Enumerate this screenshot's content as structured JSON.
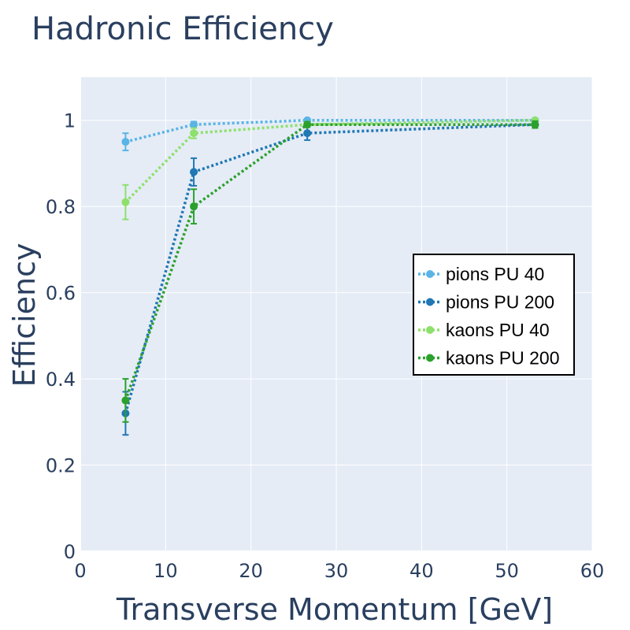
{
  "chart_data": {
    "type": "line",
    "title": "Hadronic Efficiency",
    "xlabel": "Transverse Momentum [GeV]",
    "ylabel": "Efficiency",
    "xlim": [
      0,
      60
    ],
    "ylim": [
      0,
      1.1
    ],
    "x_ticks": [
      "0",
      "10",
      "20",
      "30",
      "40",
      "50",
      "60"
    ],
    "y_ticks": [
      "0",
      "0.2",
      "0.4",
      "0.6",
      "0.8",
      "1"
    ],
    "grid": true,
    "legend_position": "right",
    "series": [
      {
        "name": "pions PU 40",
        "color": "#5ab4e5",
        "x": [
          5.3,
          13.3,
          26.6,
          53.3
        ],
        "y": [
          0.95,
          0.99,
          1.0,
          1.0
        ],
        "err": [
          0.02,
          0.007,
          0.002,
          0.002
        ]
      },
      {
        "name": "pions PU 200",
        "color": "#1f77b4",
        "x": [
          5.3,
          13.3,
          26.6,
          53.3
        ],
        "y": [
          0.32,
          0.88,
          0.97,
          0.99
        ],
        "err": [
          0.05,
          0.032,
          0.016,
          0.006
        ]
      },
      {
        "name": "kaons PU 40",
        "color": "#8ee06c",
        "x": [
          5.3,
          13.3,
          26.6,
          53.3
        ],
        "y": [
          0.81,
          0.97,
          0.99,
          1.0
        ],
        "err": [
          0.04,
          0.012,
          0.004,
          0.002
        ]
      },
      {
        "name": "kaons PU 200",
        "color": "#2ca02c",
        "x": [
          5.3,
          13.3,
          26.6,
          53.3
        ],
        "y": [
          0.35,
          0.8,
          0.99,
          0.99
        ],
        "err": [
          0.05,
          0.04,
          0.006,
          0.008
        ]
      }
    ]
  },
  "colors": {
    "plot_background": "#e5ecf6",
    "grid": "#ffffff",
    "text": "#2a3f5f"
  }
}
